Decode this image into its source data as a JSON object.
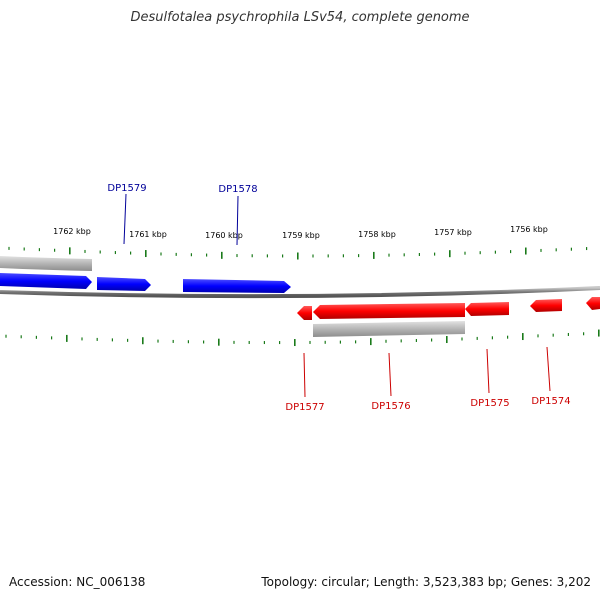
{
  "title": "Desulfotalea psychrophila LSv54, complete genome",
  "footer": {
    "accession": "Accession: NC_006138",
    "summary": "Topology: circular; Length: 3,523,383 bp; Genes: 3,202"
  },
  "colors": {
    "forward": "#0000ff",
    "reverse": "#ff0000",
    "backbone": "#7a7a7a",
    "tick": "#1a7a1a",
    "label_forward": "#000099",
    "label_reverse": "#cc0000",
    "other": "#b0b0b0"
  },
  "scale": {
    "unit": "kbp",
    "labels": [
      {
        "text": "1762 kbp"
      },
      {
        "text": "1761 kbp"
      },
      {
        "text": "1760 kbp"
      },
      {
        "text": "1759 kbp"
      },
      {
        "text": "1758 kbp"
      },
      {
        "text": "1757 kbp"
      },
      {
        "text": "1756 kbp"
      }
    ]
  },
  "genes": [
    {
      "id": "DP1579",
      "strand": "forward"
    },
    {
      "id": "DP1578",
      "strand": "forward"
    },
    {
      "id": "DP1577",
      "strand": "reverse"
    },
    {
      "id": "DP1576",
      "strand": "reverse"
    },
    {
      "id": "DP1575",
      "strand": "reverse"
    },
    {
      "id": "DP1574",
      "strand": "reverse"
    }
  ]
}
